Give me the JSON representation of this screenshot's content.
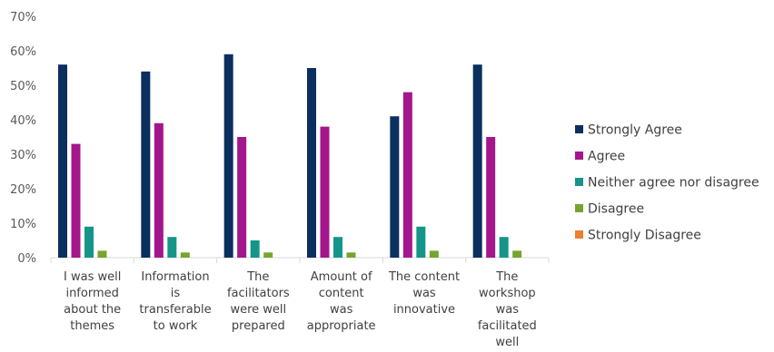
{
  "chart_data": {
    "type": "bar",
    "categories": [
      [
        "I was well",
        "informed",
        "about the",
        "themes"
      ],
      [
        "Information",
        "is",
        "transferable",
        "to work"
      ],
      [
        "The",
        "facilitators",
        "were well",
        "prepared"
      ],
      [
        "Amount of",
        "content",
        "was",
        "appropriate"
      ],
      [
        "The content",
        "was",
        "innovative"
      ],
      [
        "The",
        "workshop",
        "was",
        "facilitated",
        "well"
      ]
    ],
    "series": [
      {
        "name": "Strongly Agree",
        "color": "#0b2f5e",
        "values": [
          56,
          54,
          59,
          55,
          41,
          56
        ]
      },
      {
        "name": "Agree",
        "color": "#a4168c",
        "values": [
          33,
          39,
          35,
          38,
          48,
          35
        ]
      },
      {
        "name": "Neither agree nor disagree",
        "color": "#15958a",
        "values": [
          9,
          6,
          5,
          6,
          9,
          6
        ]
      },
      {
        "name": "Disagree",
        "color": "#76a52e",
        "values": [
          2,
          1.5,
          1.5,
          1.5,
          2,
          2
        ]
      },
      {
        "name": "Strongly Disagree",
        "color": "#ee7e33",
        "values": [
          0,
          0,
          0,
          0,
          0,
          0
        ]
      }
    ],
    "ylim": [
      0,
      70
    ],
    "yticks": [
      "0%",
      "10%",
      "20%",
      "30%",
      "40%",
      "50%",
      "60%",
      "70%"
    ],
    "legend_position": "right",
    "grid": false
  }
}
